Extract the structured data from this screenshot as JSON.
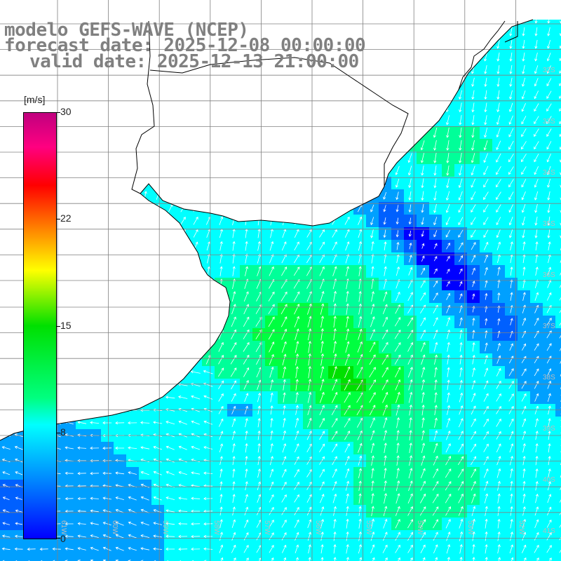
{
  "header": {
    "line1": "modelo GEFS-WAVE (NCEP)",
    "line2": "forecast date: 2025-12-08 00:00:00",
    "line3": "valid date: 2025-12-13 21:00:00"
  },
  "colorbar": {
    "unit": "[m/s]",
    "ticks": [
      "30",
      "22",
      "15",
      "8",
      "0"
    ],
    "values": [
      30,
      22,
      15,
      8,
      0
    ],
    "colors": [
      "#0000ff",
      "#0080ff",
      "#00ffff",
      "#00ff80",
      "#00e000",
      "#ffff00",
      "#ff8000",
      "#ff0000",
      "#c0007f"
    ]
  },
  "grid": {
    "lat_labels": [
      "32S",
      "33S",
      "34S",
      "35S",
      "36S",
      "37S",
      "38S",
      "39S",
      "40S",
      "41S"
    ],
    "lon_labels": [
      "61W",
      "60W",
      "59W",
      "58W",
      "57W",
      "56W",
      "55W",
      "54W",
      "53W",
      "52W",
      "51W"
    ]
  },
  "colors": {
    "land": "#ffffff",
    "coast": "#000000",
    "gridline": "#808080",
    "arrow": "#ffffff",
    "title": "#808080"
  }
}
